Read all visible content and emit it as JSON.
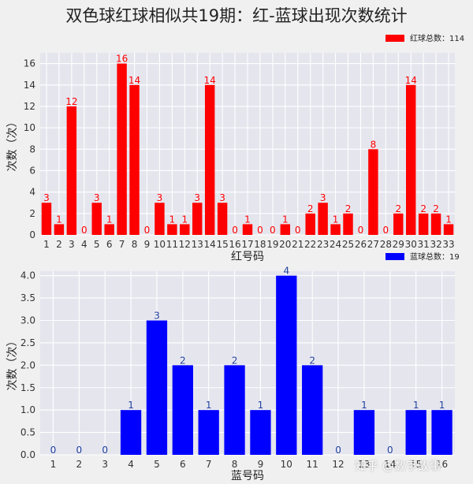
{
  "title": "双色球红球相似共19期：红-蓝球出现次数统计",
  "watermark": "知乎 @数字故事",
  "chart_data": [
    {
      "type": "bar",
      "color": "#ff0000",
      "label_color": "#ff0000",
      "xlabel": "红号码",
      "ylabel": "次数（次）",
      "ylim": [
        0,
        17
      ],
      "yticks": [
        "0",
        "2",
        "4",
        "6",
        "8",
        "10",
        "12",
        "14",
        "16"
      ],
      "legend": "红球总数：114",
      "legend_position": "top-right",
      "grid": true,
      "categories": [
        "1",
        "2",
        "3",
        "4",
        "5",
        "6",
        "7",
        "8",
        "9",
        "10",
        "11",
        "12",
        "13",
        "14",
        "15",
        "16",
        "17",
        "18",
        "19",
        "20",
        "21",
        "22",
        "23",
        "24",
        "25",
        "26",
        "27",
        "28",
        "29",
        "30",
        "31",
        "32",
        "33"
      ],
      "values": [
        3,
        1,
        12,
        0,
        3,
        1,
        16,
        14,
        0,
        3,
        1,
        1,
        3,
        14,
        3,
        0,
        1,
        0,
        0,
        1,
        0,
        2,
        3,
        1,
        2,
        0,
        8,
        0,
        2,
        14,
        2,
        2,
        1
      ]
    },
    {
      "type": "bar",
      "color": "#0000ff",
      "label_color": "#1f3f9f",
      "xlabel": "蓝号码",
      "ylabel": "次数（次）",
      "ylim": [
        0,
        4.1
      ],
      "yticks": [
        "0.0",
        "0.5",
        "1.0",
        "1.5",
        "2.0",
        "2.5",
        "3.0",
        "3.5",
        "4.0"
      ],
      "legend": "蓝球总数：19",
      "legend_position": "top-right",
      "grid": true,
      "categories": [
        "1",
        "2",
        "3",
        "4",
        "5",
        "6",
        "7",
        "8",
        "9",
        "10",
        "11",
        "12",
        "13",
        "14",
        "15",
        "16"
      ],
      "values": [
        0,
        0,
        0,
        1,
        3,
        2,
        1,
        2,
        1,
        4,
        2,
        0,
        1,
        0,
        1,
        1
      ]
    }
  ]
}
